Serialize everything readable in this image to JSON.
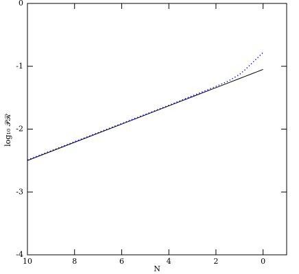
{
  "chart_data": {
    "type": "line",
    "x_label": "N",
    "y_label": "log₁₀ 𝒫ℛ",
    "x": [
      10,
      8,
      6,
      4,
      3,
      2,
      1.5,
      1,
      0.75,
      0.5,
      0.25,
      0
    ],
    "series": [
      {
        "name": "solid",
        "color": "#000000",
        "dash": "solid",
        "values": [
          -2.5,
          -2.21,
          -1.92,
          -1.63,
          -1.485,
          -1.34,
          -1.2675,
          -1.195,
          -1.15875,
          -1.1225,
          -1.08625,
          -1.05
        ]
      },
      {
        "name": "dotted",
        "color": "#0000ff",
        "dash": "dotted",
        "values": [
          -2.49,
          -2.2,
          -1.91,
          -1.62,
          -1.47,
          -1.32,
          -1.24,
          -1.13,
          -1.05,
          -0.96,
          -0.87,
          -0.78
        ]
      }
    ],
    "xlim": [
      10,
      -1
    ],
    "xticks": [
      10,
      8,
      6,
      4,
      2,
      0
    ],
    "ylim": [
      -4,
      0
    ],
    "yticks": [
      0,
      -1,
      -2,
      -3,
      -4
    ]
  }
}
